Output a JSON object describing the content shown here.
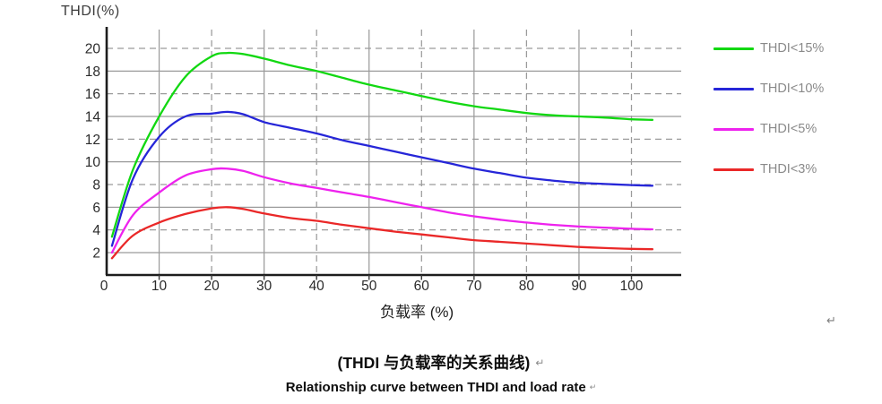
{
  "chart_data": {
    "type": "line",
    "title": "THDI(%)",
    "xlabel": "负载率 (%)",
    "ylabel": "THDI(%)",
    "xlim": [
      0,
      110
    ],
    "ylim": [
      0,
      21
    ],
    "x_ticks": [
      0,
      10,
      20,
      30,
      40,
      50,
      60,
      70,
      80,
      90,
      100
    ],
    "y_ticks": [
      2,
      4,
      6,
      8,
      10,
      12,
      14,
      16,
      18,
      20
    ],
    "grid": "horizontal solid at 2,6,10,14,18 and dashed at 4,8,12,16,20; vertical solid at 10,30,50,70,90 and dashed at 20,40,60,80,100",
    "legend_position": "right",
    "x": [
      1,
      5,
      10,
      15,
      20,
      23,
      26,
      30,
      35,
      40,
      45,
      50,
      55,
      60,
      65,
      70,
      75,
      80,
      85,
      90,
      95,
      100,
      104
    ],
    "series": [
      {
        "name": "THDI<15%",
        "color": "#12d812",
        "values": [
          3.4,
          9.3,
          14.0,
          17.5,
          19.3,
          19.6,
          19.5,
          19.1,
          18.5,
          18.0,
          17.4,
          16.8,
          16.3,
          15.8,
          15.3,
          14.9,
          14.6,
          14.3,
          14.1,
          14.0,
          13.9,
          13.75,
          13.7
        ]
      },
      {
        "name": "THDI<10%",
        "color": "#2626d8",
        "values": [
          2.6,
          8.5,
          12.2,
          14.0,
          14.25,
          14.4,
          14.2,
          13.5,
          13.0,
          12.5,
          11.9,
          11.4,
          10.9,
          10.4,
          9.9,
          9.4,
          9.0,
          8.6,
          8.35,
          8.15,
          8.05,
          7.95,
          7.9
        ]
      },
      {
        "name": "THDI<5%",
        "color": "#ee22ee",
        "values": [
          2.0,
          5.3,
          7.3,
          8.8,
          9.35,
          9.4,
          9.2,
          8.65,
          8.1,
          7.7,
          7.3,
          6.9,
          6.45,
          6.0,
          5.55,
          5.2,
          4.9,
          4.65,
          4.45,
          4.3,
          4.2,
          4.1,
          4.05
        ]
      },
      {
        "name": "THDI<3%",
        "color": "#ea2828",
        "values": [
          1.5,
          3.5,
          4.65,
          5.4,
          5.9,
          6.0,
          5.85,
          5.45,
          5.05,
          4.8,
          4.45,
          4.15,
          3.85,
          3.6,
          3.35,
          3.1,
          2.95,
          2.8,
          2.65,
          2.5,
          2.4,
          2.33,
          2.3
        ]
      }
    ]
  },
  "legend": {
    "items": [
      {
        "label": "THDI<15%",
        "color": "#12d812"
      },
      {
        "label": "THDI<10%",
        "color": "#2626d8"
      },
      {
        "label": "THDI<5%",
        "color": "#ee22ee"
      },
      {
        "label": "THDI<3%",
        "color": "#ea2828"
      }
    ]
  },
  "captions": {
    "zh": "(THDI 与负载率的关系曲线)",
    "en": "Relationship curve between THDI and load rate",
    "paragraph_mark": "↵"
  },
  "style": {
    "grid_color": "#9b9b9b",
    "axis_color": "#1d1d1d",
    "tick_label_color": "#2b2b2b"
  }
}
